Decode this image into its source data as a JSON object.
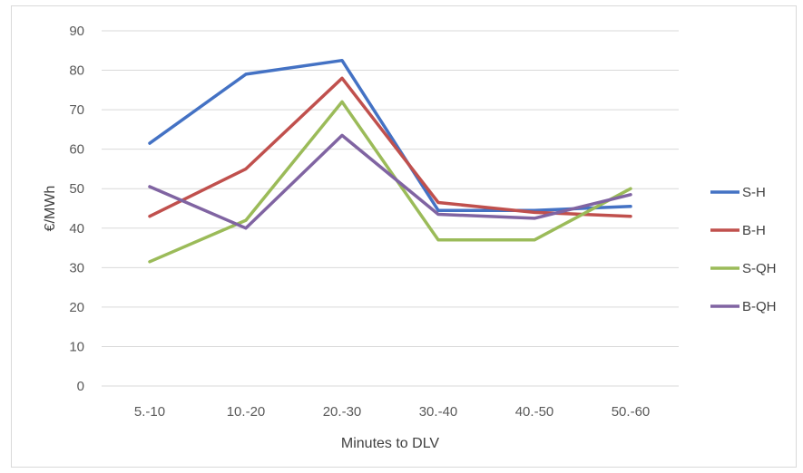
{
  "chart_data": {
    "type": "line",
    "xlabel": "Minutes to DLV",
    "ylabel": "€/MWh",
    "categories": [
      "5.-10",
      "10.-20",
      "20.-30",
      "30.-40",
      "40.-50",
      "50.-60"
    ],
    "ylim": [
      0,
      90
    ],
    "yticks": [
      0,
      10,
      20,
      30,
      40,
      50,
      60,
      70,
      80,
      90
    ],
    "grid": true,
    "legend_position": "right",
    "series": [
      {
        "name": "S-H",
        "color": "#4472C4",
        "values": [
          61.5,
          79,
          82.5,
          44.5,
          44.5,
          45.5
        ]
      },
      {
        "name": "B-H",
        "color": "#C0504D",
        "values": [
          43,
          55,
          78,
          46.5,
          44,
          43
        ]
      },
      {
        "name": "S-QH",
        "color": "#9BBB59",
        "values": [
          31.5,
          42,
          72,
          37,
          37,
          50
        ]
      },
      {
        "name": "B-QH",
        "color": "#8064A2",
        "values": [
          50.5,
          40,
          63.5,
          43.5,
          42.5,
          48.5
        ]
      }
    ]
  }
}
